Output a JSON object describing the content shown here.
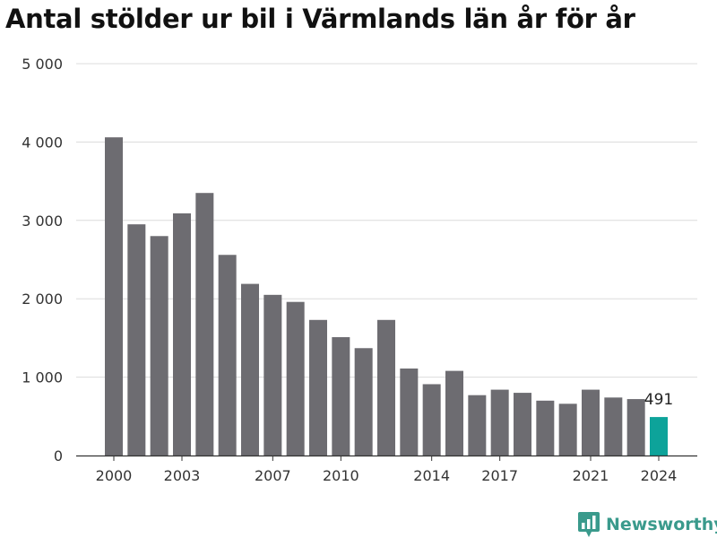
{
  "chart_data": {
    "type": "bar",
    "title": "Antal stölder ur bil i Värmlands län år för år",
    "x": [
      2000,
      2001,
      2002,
      2003,
      2004,
      2005,
      2006,
      2007,
      2008,
      2009,
      2010,
      2011,
      2012,
      2013,
      2014,
      2015,
      2016,
      2017,
      2018,
      2019,
      2020,
      2021,
      2022,
      2023,
      2024
    ],
    "values": [
      4060,
      2950,
      2800,
      3090,
      3350,
      2560,
      2190,
      2050,
      1960,
      1730,
      1510,
      1370,
      1730,
      1110,
      910,
      1080,
      770,
      840,
      800,
      700,
      660,
      840,
      740,
      720,
      491
    ],
    "ylim": [
      0,
      5000
    ],
    "yticks": [
      "0",
      "1 000",
      "2 000",
      "3 000",
      "4 000",
      "5 000"
    ],
    "ytick_values": [
      0,
      1000,
      2000,
      3000,
      4000,
      5000
    ],
    "xticks": [
      2000,
      2003,
      2007,
      2010,
      2014,
      2017,
      2021,
      2024
    ],
    "data_labels": [
      {
        "x": 2024,
        "text": "491"
      }
    ],
    "grid": true,
    "colors": {
      "default": "#6d6c71",
      "highlight": "#0da39a",
      "grid": "#dcdcdc",
      "axis": "#333333"
    }
  },
  "brand": {
    "name": "Newsworthy",
    "logo_icon": "bar-chart-pin-icon",
    "color": "#3a9a8c"
  }
}
